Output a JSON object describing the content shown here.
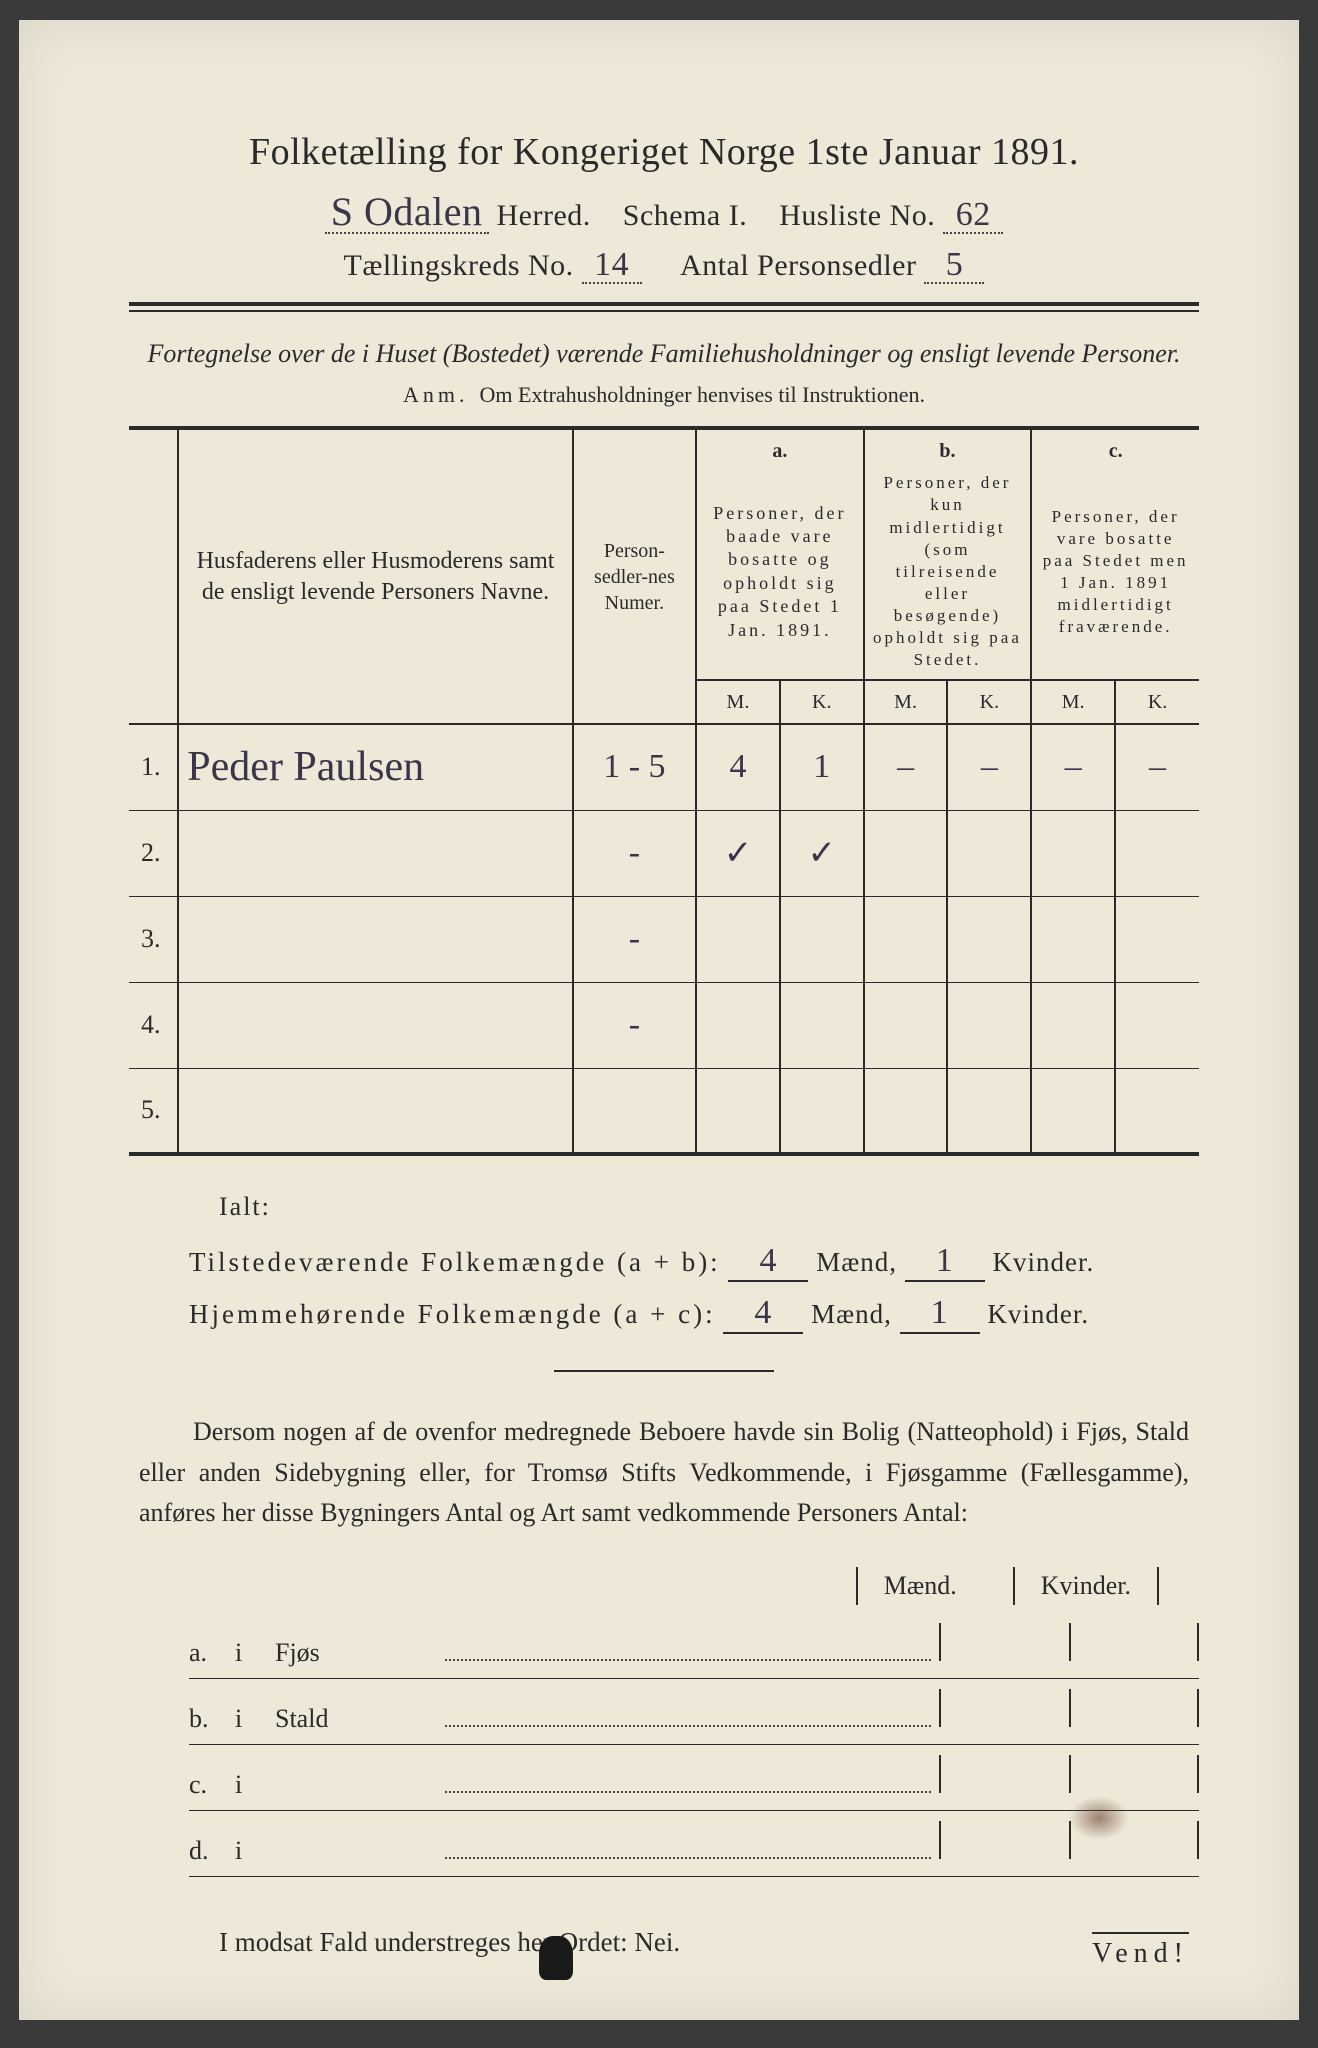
{
  "title": "Folketælling for Kongeriget Norge 1ste Januar 1891.",
  "header": {
    "herred_hand": "S Odalen",
    "herred_label": "Herred.",
    "schema_label": "Schema I.",
    "husliste_label": "Husliste No.",
    "husliste_no": "62",
    "kreds_label": "Tællingskreds No.",
    "kreds_no": "14",
    "antal_label": "Antal Personsedler",
    "antal_no": "5"
  },
  "intro": "Fortegnelse over de i Huset (Bostedet) værende Familiehusholdninger og ensligt levende Personer.",
  "anm_label": "Anm.",
  "anm_text": "Om Extrahusholdninger henvises til Instruktionen.",
  "table": {
    "col_names": "Husfaderens eller Husmoderens samt de ensligt levende Personers Navne.",
    "col_numer": "Person-sedler-nes Numer.",
    "col_a_lab": "a.",
    "col_a": "Personer, der baade vare bosatte og opholdt sig paa Stedet 1 Jan. 1891.",
    "col_b_lab": "b.",
    "col_b": "Personer, der kun midlertidigt (som tilreisende eller besøgende) opholdt sig paa Stedet.",
    "col_c_lab": "c.",
    "col_c": "Personer, der vare bosatte paa Stedet men 1 Jan. 1891 midlertidigt fraværende.",
    "M": "M.",
    "K": "K.",
    "rows": [
      {
        "n": "1.",
        "name": "Peder Paulsen",
        "numer": "1 - 5",
        "aM": "4",
        "aK": "1",
        "bM": "–",
        "bK": "–",
        "cM": "–",
        "cK": "–"
      },
      {
        "n": "2.",
        "name": "",
        "numer": "-",
        "aM": "✓",
        "aK": "✓",
        "bM": "",
        "bK": "",
        "cM": "",
        "cK": ""
      },
      {
        "n": "3.",
        "name": "",
        "numer": "-",
        "aM": "",
        "aK": "",
        "bM": "",
        "bK": "",
        "cM": "",
        "cK": ""
      },
      {
        "n": "4.",
        "name": "",
        "numer": "-",
        "aM": "",
        "aK": "",
        "bM": "",
        "bK": "",
        "cM": "",
        "cK": ""
      },
      {
        "n": "5.",
        "name": "",
        "numer": "",
        "aM": "",
        "aK": "",
        "bM": "",
        "bK": "",
        "cM": "",
        "cK": ""
      }
    ]
  },
  "ialt": "Ialt:",
  "totals": {
    "line1_label": "Tilstedeværende Folkemængde (a + b):",
    "line1_m": "4",
    "line1_k": "1",
    "line2_label": "Hjemmehørende Folkemængde (a + c):",
    "line2_m": "4",
    "line2_k": "1",
    "maend": "Mænd,",
    "kvinder": "Kvinder."
  },
  "para": "Dersom nogen af de ovenfor medregnede Beboere havde sin Bolig (Natteophold) i Fjøs, Stald eller anden Sidebygning eller, for Tromsø Stifts Vedkommende, i Fjøsgamme (Fællesgamme), anføres her disse Bygningers Antal og Art samt vedkommende Personers Antal:",
  "mk": {
    "m": "Mænd.",
    "k": "Kvinder."
  },
  "sublist": [
    {
      "lab": "a.",
      "i": "i",
      "txt": "Fjøs"
    },
    {
      "lab": "b.",
      "i": "i",
      "txt": "Stald"
    },
    {
      "lab": "c.",
      "i": "i",
      "txt": ""
    },
    {
      "lab": "d.",
      "i": "i",
      "txt": ""
    }
  ],
  "nei": "I modsat Fald understreges her Ordet: Nei.",
  "vend": "Vend!"
}
